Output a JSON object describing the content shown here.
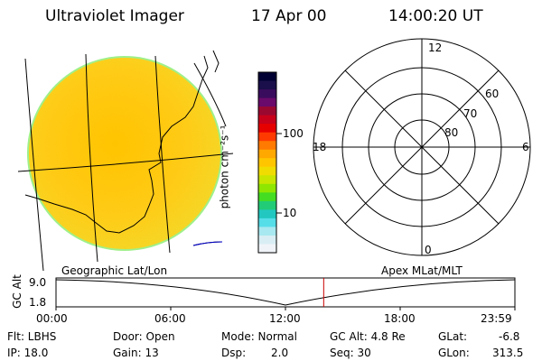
{
  "header": {
    "title": "Ultraviolet Imager",
    "date": "17 Apr 00",
    "time": "14:00:20 UT"
  },
  "colorbar": {
    "unit_label": "photon cm⁻²s⁻¹",
    "tick_100": "100",
    "tick_10": "10",
    "colors": [
      "#000033",
      "#1a0f4a",
      "#3a0c5e",
      "#6a0a6a",
      "#9a0830",
      "#c8001a",
      "#e60000",
      "#ff3a00",
      "#ff7a00",
      "#ffa800",
      "#ffc600",
      "#f0dc00",
      "#c8e600",
      "#8fe600",
      "#44dd22",
      "#22cc77",
      "#22c8c0",
      "#55dde8",
      "#a8e8f0",
      "#d8eef4",
      "#f0f4f8"
    ]
  },
  "polar": {
    "labels": {
      "top": "12",
      "bottom": "0",
      "left": "18",
      "right": "6",
      "lat60": "60",
      "lat70": "70",
      "lat80": "80"
    }
  },
  "plot": {
    "left_label": "Geographic Lat/Lon",
    "right_label": "Apex MLat/MLT",
    "y_axis_label": "GC Alt",
    "y_top": "9.0",
    "y_bottom": "1.8",
    "x_ticks": [
      "00:00",
      "06:00",
      "12:00",
      "18:00",
      "23:59"
    ],
    "current_marker_hours": 14.0
  },
  "info": {
    "flt": "Flt: LBHS",
    "ip": "IP: 18.0",
    "door": "Door: Open",
    "gain": "Gain: 13",
    "mode": "Mode: Normal",
    "dsp_label": "Dsp:",
    "dsp_value": "2.0",
    "gc_alt": "GC Alt: 4.8 Re",
    "seq": "Seq: 30",
    "glat_label": "GLat:",
    "glat_value": "-6.8",
    "glon_label": "GLon:",
    "glon_value": "313.5"
  }
}
